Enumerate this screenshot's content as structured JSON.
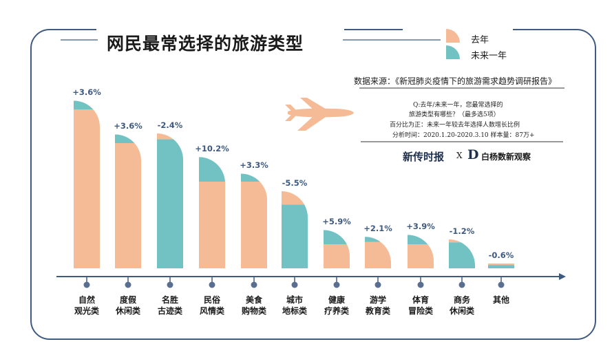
{
  "title": "网民最常选择的旅游类型",
  "legend": [
    {
      "label": "去年",
      "color": "#f5bb96"
    },
    {
      "label": "未来一年",
      "color": "#72c2c4"
    }
  ],
  "source": "数据来源：《新冠肺炎疫情下的旅游需求趋势调研报告》",
  "notes": {
    "line1": "Q:去年/未来一年，您最常选择的",
    "line2": "旅游类型有哪些？（最多选5项）",
    "line3": "百分比为正：未来一年较去年选择人数增长比例",
    "line4": "分析时间：2020.1.20-2020.3.10   样本量：87万+"
  },
  "brands": {
    "left": "新传时报",
    "separator": "X",
    "right_mark": "D",
    "right": "白杨数新观察"
  },
  "colors": {
    "axis": "#3f5a80",
    "last_year": "#f5bb96",
    "next_year": "#72c2c4",
    "frame": "#3f5a80"
  },
  "chart_data": {
    "type": "bar",
    "series": [
      {
        "name": "去年"
      },
      {
        "name": "未来一年"
      }
    ],
    "categories": [
      [
        "自然",
        "观光类"
      ],
      [
        "度假",
        "休闲类"
      ],
      [
        "名胜",
        "古迹类"
      ],
      [
        "民俗",
        "风情类"
      ],
      [
        "美食",
        "购物类"
      ],
      [
        "城市",
        "地标类"
      ],
      [
        "健康",
        "疗养类"
      ],
      [
        "游学",
        "教育类"
      ],
      [
        "体育",
        "冒险类"
      ],
      [
        "商务",
        "休闲类"
      ],
      [
        "其他",
        ""
      ]
    ],
    "change_labels": [
      "+3.6%",
      "+3.6%",
      "-2.4%",
      "+10.2%",
      "+3.3%",
      "-5.5%",
      "+5.9%",
      "+2.1%",
      "+3.9%",
      "-1.2%",
      "-0.6%"
    ],
    "change_values": [
      3.6,
      3.6,
      -2.4,
      10.2,
      3.3,
      -5.5,
      5.9,
      2.1,
      3.9,
      -1.2,
      -0.6
    ],
    "last_year_relative": [
      66,
      52,
      56,
      36,
      36,
      32,
      10,
      11,
      10,
      12,
      2
    ],
    "next_year_relative": [
      69.6,
      55.6,
      53.6,
      46.2,
      39.3,
      26.5,
      15.9,
      13.1,
      13.9,
      10.8,
      1.4
    ],
    "grid": false,
    "legend_position": "top-right"
  }
}
